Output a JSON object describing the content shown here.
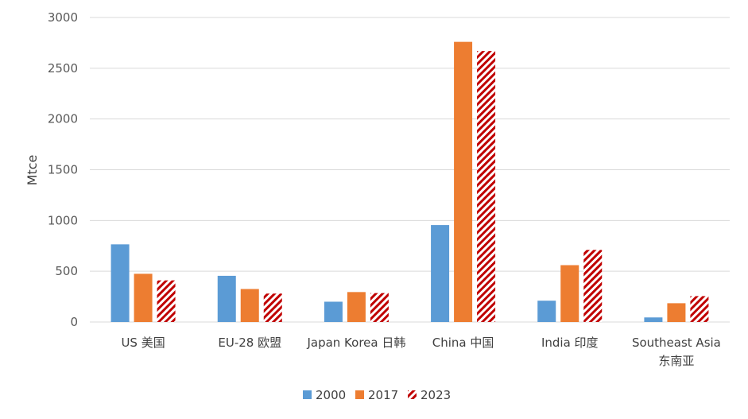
{
  "chart_data": {
    "type": "bar",
    "title": "",
    "xlabel": "",
    "ylabel": "Mtce",
    "ylim": [
      0,
      3000
    ],
    "yticks": [
      0,
      500,
      1000,
      1500,
      2000,
      2500,
      3000
    ],
    "grid": true,
    "legend_position": "bottom",
    "categories": [
      [
        "US 美国"
      ],
      [
        "EU-28 欧盟"
      ],
      [
        "Japan Korea 日韩"
      ],
      [
        "China 中国"
      ],
      [
        "India 印度"
      ],
      [
        "Southeast Asia",
        "东南亚"
      ]
    ],
    "series": [
      {
        "name": "2000",
        "color": "#5B9BD5",
        "pattern": "solid",
        "values": [
          765,
          455,
          200,
          955,
          210,
          45
        ]
      },
      {
        "name": "2017",
        "color": "#ED7D31",
        "pattern": "solid",
        "values": [
          475,
          325,
          295,
          2760,
          560,
          185
        ]
      },
      {
        "name": "2023",
        "color": "#C00000",
        "pattern": "diagonal-stripes",
        "values": [
          410,
          280,
          285,
          2670,
          710,
          255
        ]
      }
    ]
  }
}
